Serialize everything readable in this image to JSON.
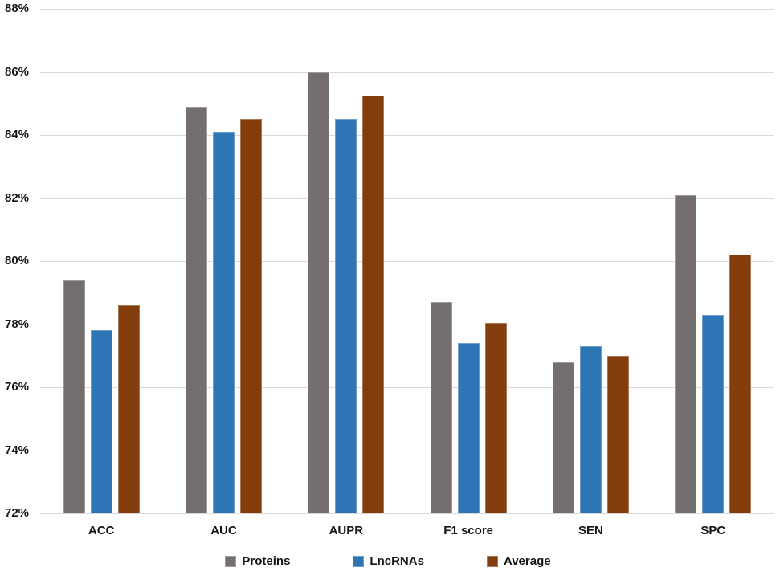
{
  "figure": {
    "background": "#FFFFFF",
    "gridline_color": "#D9D9D9",
    "text_color": "#161616"
  },
  "chart_data": {
    "type": "bar",
    "title": "",
    "xlabel": "",
    "ylabel": "",
    "categories": [
      "ACC",
      "AUC",
      "AUPR",
      "F1 score",
      "SEN",
      "SPC"
    ],
    "series": [
      {
        "name": "Proteins",
        "color": "#746E6F",
        "values": [
          79.4,
          84.9,
          86.0,
          78.7,
          76.8,
          82.1
        ]
      },
      {
        "name": "LncRNAs",
        "color": "#2E75B6",
        "values": [
          77.8,
          84.1,
          84.5,
          77.4,
          77.3,
          78.3
        ]
      },
      {
        "name": "Average",
        "color": "#833C0C",
        "values": [
          78.6,
          84.5,
          85.25,
          78.05,
          77.0,
          80.2
        ]
      }
    ],
    "ylim": [
      72,
      88
    ],
    "y_tick_step": 2,
    "y_tick_labels": [
      "88%",
      "86%",
      "84%",
      "82%",
      "80%",
      "78%",
      "76%",
      "74%",
      "72%"
    ],
    "grid": true,
    "legend_position": "bottom"
  }
}
